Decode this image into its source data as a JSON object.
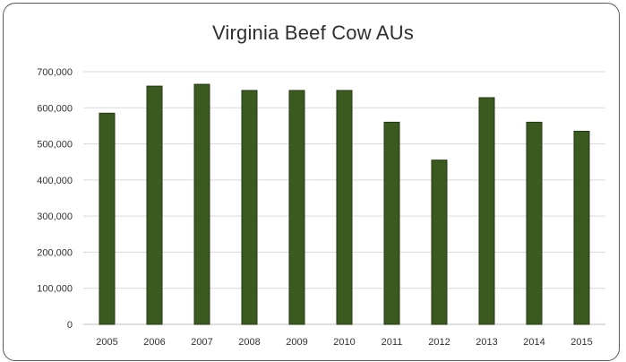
{
  "chart_data": {
    "type": "bar",
    "title": "Virginia Beef Cow AUs",
    "xlabel": "",
    "ylabel": "",
    "categories": [
      "2005",
      "2006",
      "2007",
      "2008",
      "2009",
      "2010",
      "2011",
      "2012",
      "2013",
      "2014",
      "2015"
    ],
    "series": [
      {
        "values": [
          585000,
          660000,
          665000,
          648000,
          648000,
          648000,
          560000,
          455000,
          628000,
          560000,
          535000
        ]
      }
    ],
    "ylim": [
      0,
      700000
    ],
    "yticks": [
      "0",
      "100,000",
      "200,000",
      "300,000",
      "400,000",
      "500,000",
      "600,000",
      "700,000"
    ],
    "bar_color": "#3a5a1f",
    "grid": true,
    "legend": "none"
  }
}
